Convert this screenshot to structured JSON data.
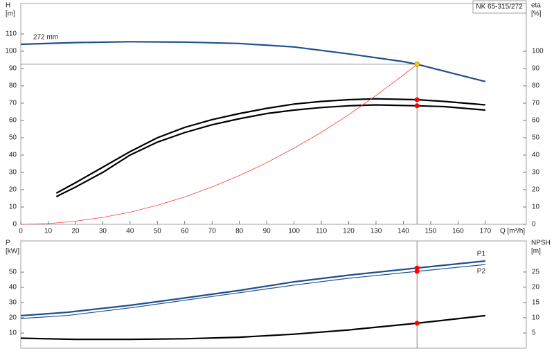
{
  "chart_data": [
    {
      "type": "line",
      "title": "NK 65-315/272",
      "ylabel": [
        "H",
        "[m]"
      ],
      "y2label": [
        "eta",
        "[%]"
      ],
      "xlabel": "Q [m³/h]",
      "xlim": [
        0,
        185
      ],
      "xticks": [
        0,
        10,
        20,
        30,
        40,
        50,
        60,
        70,
        80,
        90,
        100,
        110,
        120,
        130,
        140,
        150,
        160,
        170
      ],
      "ylim": [
        0,
        127.6
      ],
      "yticks": [
        0,
        10,
        20,
        30,
        40,
        50,
        60,
        70,
        80,
        90,
        100,
        110
      ],
      "y2lim": [
        0,
        127.6
      ],
      "y2ticks": [
        0,
        10,
        20,
        30,
        40,
        50,
        60,
        70,
        80,
        90,
        100
      ],
      "series": [
        {
          "name": "272 mm",
          "color": "#1f4e8c",
          "line_width": 2.2,
          "x": [
            0,
            20,
            40,
            60,
            80,
            100,
            120,
            140,
            145,
            155,
            170
          ],
          "values": [
            104,
            105,
            105.5,
            105.3,
            104.5,
            102.5,
            98.5,
            94,
            92.5,
            88.5,
            82.5
          ]
        },
        {
          "color": "#000000",
          "line_width": 2.2,
          "axis": "y2",
          "x": [
            13,
            20,
            30,
            40,
            50,
            60,
            70,
            80,
            90,
            100,
            110,
            120,
            130,
            145,
            155,
            170
          ],
          "values": [
            18,
            24,
            33,
            42,
            50,
            56,
            60.5,
            64,
            67,
            69.5,
            71,
            72,
            72.5,
            72,
            71,
            69
          ]
        },
        {
          "color": "#000000",
          "line_width": 2.2,
          "axis": "y2",
          "x": [
            13,
            20,
            30,
            40,
            50,
            60,
            70,
            80,
            90,
            100,
            110,
            120,
            130,
            145,
            155,
            170
          ],
          "values": [
            16,
            21.5,
            30,
            40,
            47.5,
            53,
            57.5,
            61,
            64,
            66,
            67.5,
            68.5,
            69,
            68.5,
            68,
            66
          ]
        },
        {
          "color": "#ff3b30",
          "line_width": 0.8,
          "x": [
            0,
            10,
            20,
            30,
            40,
            50,
            60,
            70,
            80,
            90,
            100,
            110,
            120,
            130,
            140,
            145
          ],
          "values": [
            0,
            0.4,
            1.8,
            4,
            7,
            11,
            15.8,
            21.6,
            28.2,
            35.6,
            44,
            53.2,
            63.3,
            74.4,
            86.2,
            92.5
          ]
        }
      ],
      "markers": [
        {
          "x": 145,
          "y": 92.5,
          "color": "#f5c518"
        },
        {
          "x": 145,
          "y": 72,
          "color": "#ff0000",
          "axis": "y2"
        },
        {
          "x": 145,
          "y": 68.5,
          "color": "#ff0000",
          "axis": "y2"
        }
      ]
    },
    {
      "type": "line",
      "ylabel": [
        "P",
        "[kW]"
      ],
      "y2label": [
        "NPSH",
        "[m]"
      ],
      "xlim": [
        0,
        185
      ],
      "ylim": [
        0,
        70.5
      ],
      "yticks": [
        10,
        20,
        30,
        40,
        50
      ],
      "y2lim": [
        0,
        35.2
      ],
      "y2ticks": [
        5,
        10,
        15,
        20,
        25
      ],
      "series": [
        {
          "name": "P1",
          "color": "#1f4e8c",
          "line_width": 2.2,
          "x": [
            0,
            17,
            40,
            60,
            80,
            100,
            120,
            145,
            170
          ],
          "values": [
            21.4,
            23.6,
            28.2,
            33,
            38,
            43.6,
            48,
            52.7,
            57.3
          ]
        },
        {
          "name": "P2",
          "color": "#1f4e8c",
          "line_width": 1.2,
          "x": [
            0,
            17,
            40,
            60,
            80,
            100,
            120,
            145,
            170
          ],
          "values": [
            19.5,
            21.5,
            26.5,
            31.5,
            36.5,
            41.5,
            46,
            50.5,
            55
          ]
        },
        {
          "color": "#000000",
          "line_width": 2.2,
          "axis": "y2",
          "x": [
            0,
            20,
            40,
            60,
            80,
            100,
            120,
            145,
            170
          ],
          "values": [
            3.3,
            2.9,
            2.9,
            3.1,
            3.6,
            4.6,
            6,
            8.2,
            10.7
          ]
        }
      ],
      "markers": [
        {
          "x": 145,
          "y": 52.7,
          "color": "#ff0000"
        },
        {
          "x": 145,
          "y": 50.5,
          "color": "#ff0000"
        },
        {
          "x": 145,
          "y": 8.2,
          "color": "#ff0000",
          "axis": "y2"
        }
      ]
    }
  ]
}
